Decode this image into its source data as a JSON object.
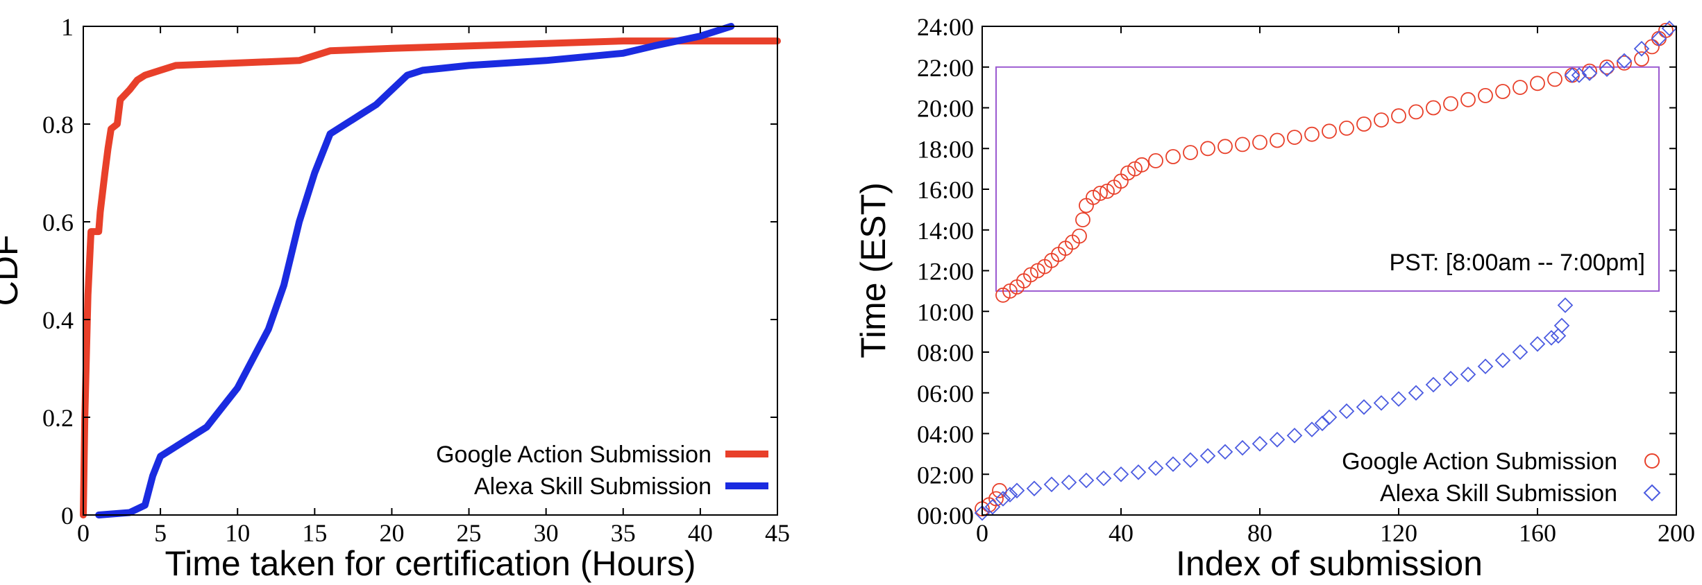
{
  "chart_data": [
    {
      "type": "line",
      "title": "",
      "xlabel": "Time taken for certification (Hours)",
      "ylabel": "CDF",
      "xlim": [
        0,
        45
      ],
      "ylim": [
        0,
        1
      ],
      "xticks": [
        "0",
        "5",
        "10",
        "15",
        "20",
        "25",
        "30",
        "35",
        "40",
        "45"
      ],
      "yticks": [
        "0",
        "0.2",
        "0.4",
        "0.6",
        "0.8",
        "1"
      ],
      "grid": false,
      "legend_position": "bottom-right",
      "series": [
        {
          "name": "Google Action Submission",
          "color": "#e8402a",
          "points": [
            [
              0,
              0
            ],
            [
              0.1,
              0.2
            ],
            [
              0.3,
              0.45
            ],
            [
              0.5,
              0.58
            ],
            [
              1,
              0.58
            ],
            [
              1.1,
              0.62
            ],
            [
              1.4,
              0.7
            ],
            [
              1.6,
              0.75
            ],
            [
              1.8,
              0.79
            ],
            [
              2.2,
              0.8
            ],
            [
              2.4,
              0.85
            ],
            [
              3,
              0.87
            ],
            [
              3.5,
              0.89
            ],
            [
              4,
              0.9
            ],
            [
              5,
              0.91
            ],
            [
              6,
              0.92
            ],
            [
              10,
              0.925
            ],
            [
              14,
              0.93
            ],
            [
              15,
              0.94
            ],
            [
              16,
              0.95
            ],
            [
              20,
              0.955
            ],
            [
              25,
              0.96
            ],
            [
              30,
              0.965
            ],
            [
              35,
              0.97
            ],
            [
              40,
              0.97
            ],
            [
              45,
              0.97
            ]
          ]
        },
        {
          "name": "Alexa Skill Submission",
          "color": "#1a2be0",
          "points": [
            [
              1,
              0
            ],
            [
              3,
              0.005
            ],
            [
              4,
              0.02
            ],
            [
              4.5,
              0.08
            ],
            [
              5,
              0.12
            ],
            [
              6,
              0.14
            ],
            [
              7,
              0.16
            ],
            [
              8,
              0.18
            ],
            [
              9,
              0.22
            ],
            [
              10,
              0.26
            ],
            [
              11,
              0.32
            ],
            [
              12,
              0.38
            ],
            [
              13,
              0.47
            ],
            [
              14,
              0.6
            ],
            [
              15,
              0.7
            ],
            [
              16,
              0.78
            ],
            [
              17,
              0.8
            ],
            [
              18,
              0.82
            ],
            [
              19,
              0.84
            ],
            [
              20,
              0.87
            ],
            [
              21,
              0.9
            ],
            [
              22,
              0.91
            ],
            [
              25,
              0.92
            ],
            [
              30,
              0.93
            ],
            [
              35,
              0.945
            ],
            [
              37,
              0.96
            ],
            [
              40,
              0.98
            ],
            [
              42,
              1
            ]
          ]
        }
      ]
    },
    {
      "type": "scatter",
      "title": "",
      "xlabel": "Index of submission",
      "ylabel": "Time (EST)",
      "xlim": [
        0,
        200
      ],
      "ylim": [
        0,
        24
      ],
      "xticks": [
        "0",
        "40",
        "80",
        "120",
        "160",
        "200"
      ],
      "yticks": [
        "00:00",
        "02:00",
        "04:00",
        "06:00",
        "08:00",
        "10:00",
        "12:00",
        "14:00",
        "16:00",
        "18:00",
        "20:00",
        "22:00",
        "24:00"
      ],
      "grid": false,
      "legend_position": "bottom-right",
      "annotation": {
        "text": "PST: [8:00am -- 7:00pm]",
        "color": "#9b59d0",
        "rect_x": [
          4,
          195
        ],
        "rect_y": [
          11,
          22
        ]
      },
      "series": [
        {
          "name": "Google Action Submission",
          "color": "#e8402a",
          "marker": "circle",
          "points": [
            [
              0,
              0.3
            ],
            [
              2,
              0.5
            ],
            [
              4,
              0.8
            ],
            [
              5,
              1.2
            ],
            [
              6,
              10.8
            ],
            [
              8,
              11.0
            ],
            [
              10,
              11.2
            ],
            [
              12,
              11.5
            ],
            [
              14,
              11.8
            ],
            [
              16,
              12.0
            ],
            [
              18,
              12.2
            ],
            [
              20,
              12.5
            ],
            [
              22,
              12.8
            ],
            [
              24,
              13.1
            ],
            [
              26,
              13.4
            ],
            [
              28,
              13.7
            ],
            [
              29,
              14.5
            ],
            [
              30,
              15.2
            ],
            [
              32,
              15.6
            ],
            [
              34,
              15.8
            ],
            [
              36,
              15.9
            ],
            [
              38,
              16.1
            ],
            [
              40,
              16.4
            ],
            [
              42,
              16.8
            ],
            [
              44,
              17.0
            ],
            [
              46,
              17.2
            ],
            [
              50,
              17.4
            ],
            [
              55,
              17.6
            ],
            [
              60,
              17.8
            ],
            [
              65,
              18.0
            ],
            [
              70,
              18.1
            ],
            [
              75,
              18.2
            ],
            [
              80,
              18.3
            ],
            [
              85,
              18.4
            ],
            [
              90,
              18.55
            ],
            [
              95,
              18.7
            ],
            [
              100,
              18.85
            ],
            [
              105,
              19.0
            ],
            [
              110,
              19.2
            ],
            [
              115,
              19.4
            ],
            [
              120,
              19.6
            ],
            [
              125,
              19.8
            ],
            [
              130,
              20.0
            ],
            [
              135,
              20.2
            ],
            [
              140,
              20.4
            ],
            [
              145,
              20.6
            ],
            [
              150,
              20.8
            ],
            [
              155,
              21.0
            ],
            [
              160,
              21.2
            ],
            [
              165,
              21.4
            ],
            [
              170,
              21.6
            ],
            [
              175,
              21.8
            ],
            [
              180,
              22.0
            ],
            [
              185,
              22.2
            ],
            [
              190,
              22.4
            ],
            [
              193,
              23.0
            ],
            [
              195,
              23.4
            ],
            [
              197,
              23.8
            ]
          ]
        },
        {
          "name": "Alexa Skill Submission",
          "color": "#4a5ae0",
          "marker": "diamond",
          "points": [
            [
              0,
              0.1
            ],
            [
              3,
              0.4
            ],
            [
              6,
              0.8
            ],
            [
              8,
              1.0
            ],
            [
              10,
              1.2
            ],
            [
              15,
              1.3
            ],
            [
              20,
              1.5
            ],
            [
              25,
              1.6
            ],
            [
              30,
              1.7
            ],
            [
              35,
              1.8
            ],
            [
              40,
              2.0
            ],
            [
              45,
              2.1
            ],
            [
              50,
              2.3
            ],
            [
              55,
              2.5
            ],
            [
              60,
              2.7
            ],
            [
              65,
              2.9
            ],
            [
              70,
              3.1
            ],
            [
              75,
              3.3
            ],
            [
              80,
              3.5
            ],
            [
              85,
              3.7
            ],
            [
              90,
              3.9
            ],
            [
              95,
              4.2
            ],
            [
              98,
              4.5
            ],
            [
              100,
              4.8
            ],
            [
              105,
              5.1
            ],
            [
              110,
              5.3
            ],
            [
              115,
              5.5
            ],
            [
              120,
              5.7
            ],
            [
              125,
              6.0
            ],
            [
              130,
              6.4
            ],
            [
              135,
              6.7
            ],
            [
              140,
              6.9
            ],
            [
              145,
              7.3
            ],
            [
              150,
              7.6
            ],
            [
              155,
              8.0
            ],
            [
              160,
              8.4
            ],
            [
              164,
              8.7
            ],
            [
              166,
              8.8
            ],
            [
              167,
              9.3
            ],
            [
              168,
              10.3
            ],
            [
              170,
              21.6
            ],
            [
              172,
              21.6
            ],
            [
              175,
              21.7
            ],
            [
              180,
              21.9
            ],
            [
              185,
              22.3
            ],
            [
              190,
              22.9
            ],
            [
              195,
              23.4
            ],
            [
              198,
              23.9
            ]
          ]
        }
      ]
    }
  ]
}
